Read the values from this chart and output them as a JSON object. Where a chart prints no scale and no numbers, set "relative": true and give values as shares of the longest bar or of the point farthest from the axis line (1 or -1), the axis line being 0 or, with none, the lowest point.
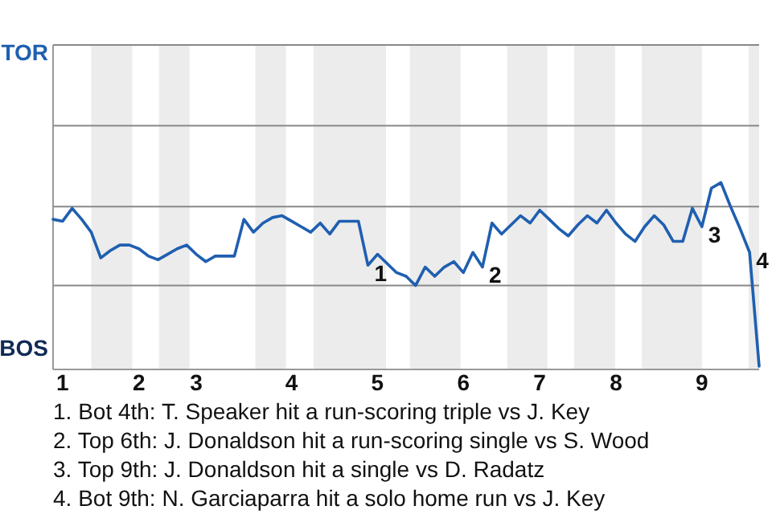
{
  "chart_data": {
    "type": "line",
    "relative": true,
    "categories": [
      null,
      "1",
      null,
      null,
      null,
      null,
      null,
      null,
      null,
      "2",
      null,
      null,
      null,
      null,
      null,
      "3",
      null,
      null,
      null,
      null,
      null,
      null,
      null,
      null,
      null,
      "4",
      null,
      null,
      null,
      null,
      null,
      null,
      null,
      null,
      "5",
      null,
      null,
      null,
      null,
      null,
      null,
      null,
      null,
      "6",
      null,
      null,
      null,
      null,
      null,
      null,
      null,
      "7",
      null,
      null,
      null,
      null,
      null,
      null,
      null,
      "8",
      null,
      null,
      null,
      null,
      null,
      null,
      null,
      null,
      "9",
      null,
      null,
      null,
      null,
      null,
      null
    ],
    "marker": "none",
    "line_style": "solid",
    "ref_lines": [
      {
        "axis": "y",
        "value": 0.44,
        "color": "#888888"
      },
      {
        "axis": "y",
        "value": 0.87,
        "color": "#888888"
      },
      {
        "axis": "y",
        "value": 1.31,
        "color": "#888888"
      },
      {
        "axis": "y",
        "value": 1.75,
        "color": "#888888"
      }
    ],
    "series": [
      {
        "color": "#1f5fb0",
        "values": [
          0.8,
          0.79,
          0.86,
          0.8,
          0.73,
          0.59,
          0.63,
          0.66,
          0.66,
          0.64,
          0.6,
          0.58,
          0.61,
          0.64,
          0.66,
          0.61,
          0.57,
          0.6,
          0.6,
          0.6,
          0.8,
          0.73,
          0.78,
          0.81,
          0.82,
          0.79,
          0.76,
          0.73,
          0.78,
          0.72,
          0.79,
          0.79,
          0.79,
          0.55,
          0.61,
          0.56,
          0.51,
          0.49,
          0.44,
          0.54,
          0.49,
          0.54,
          0.57,
          0.51,
          0.62,
          0.54,
          0.78,
          0.72,
          0.77,
          0.82,
          0.78,
          0.85,
          0.8,
          0.75,
          0.71,
          0.77,
          0.82,
          0.78,
          0.85,
          0.78,
          0.72,
          0.68,
          0.76,
          0.82,
          0.77,
          0.68,
          0.68,
          0.86,
          0.76,
          0.97,
          1,
          0.87,
          0.75,
          0.62,
          0
        ]
      }
    ],
    "annotations": [
      "TOR",
      "BOS",
      "1",
      "2",
      "3",
      "4",
      "1. Bot 4th: T. Speaker hit a run-scoring triple vs J. Key",
      "2. Top 6th: J. Donaldson hit a run-scoring single vs S. Wood",
      "3. Top 9th: J. Donaldson hit a single vs D. Radatz",
      "4. Bot 9th: N. Garciaparra hit a solo home run vs J. Key"
    ]
  }
}
